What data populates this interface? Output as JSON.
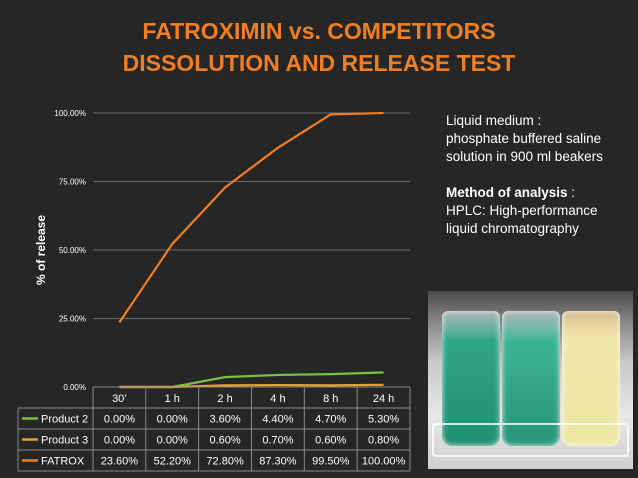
{
  "title_line1": "FATROXIMIN vs. COMPETITORS",
  "title_line2": "DISSOLUTION AND RELEASE TEST",
  "info": {
    "medium_label": "Liquid medium :",
    "medium_line2": "phosphate buffered saline",
    "medium_line3": "solution in 900 ml beakers",
    "method_label": "Method of analysis",
    "method_colon": " :",
    "method_line2": "HPLC: High-performance",
    "method_line3": "liquid chromatography"
  },
  "chart_data": {
    "type": "line",
    "categories": [
      "30’",
      "1 h",
      "2 h",
      "4 h",
      "8 h",
      "24 h"
    ],
    "ylabel": "% of release",
    "ylim": [
      0,
      100
    ],
    "yticks": [
      0,
      25,
      50,
      75,
      100
    ],
    "ytick_labels": [
      "0.00%",
      "25.00%",
      "50.00%",
      "75.00%",
      "100.00%"
    ],
    "grid": true,
    "series": [
      {
        "name": "Product 2",
        "color": "#7ac143",
        "values": [
          0.0,
          0.0,
          3.6,
          4.4,
          4.7,
          5.3
        ],
        "labels": [
          "0.00%",
          "0.00%",
          "3.60%",
          "4.40%",
          "4.70%",
          "5.30%"
        ]
      },
      {
        "name": "Product 3",
        "color": "#e8a23c",
        "values": [
          0.0,
          0.0,
          0.6,
          0.7,
          0.6,
          0.8
        ],
        "labels": [
          "0.00%",
          "0.00%",
          "0.60%",
          "0.70%",
          "0.60%",
          "0.80%"
        ]
      },
      {
        "name": "FATROX",
        "color": "#f07f24",
        "values": [
          23.6,
          52.2,
          72.8,
          87.3,
          99.5,
          100.0
        ],
        "labels": [
          "23.60%",
          "52.20%",
          "72.80%",
          "87.30%",
          "99.50%",
          "100.00%"
        ]
      }
    ]
  }
}
